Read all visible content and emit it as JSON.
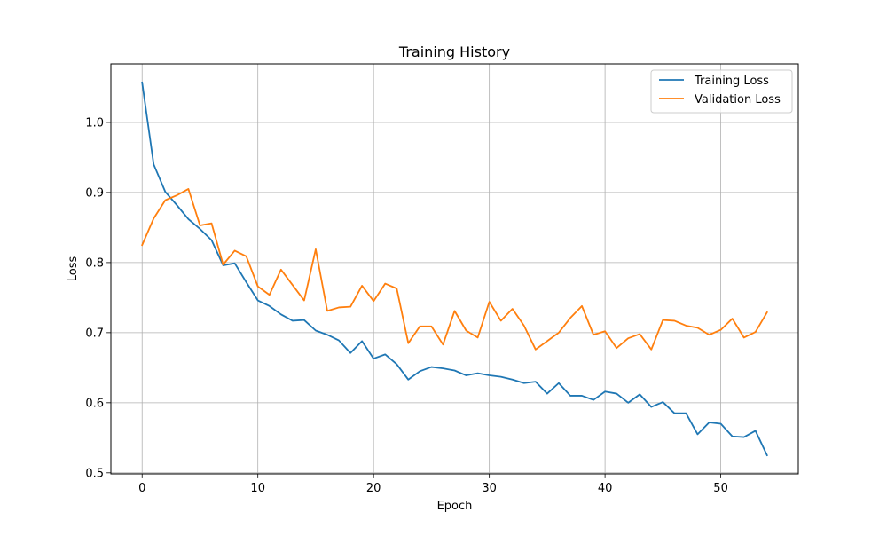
{
  "chart_data": {
    "type": "line",
    "title": "Training History",
    "xlabel": "Epoch",
    "ylabel": "Loss",
    "xlim": [
      -2.7,
      56.7
    ],
    "ylim": [
      0.4985,
      1.0835
    ],
    "xticks": [
      0,
      10,
      20,
      30,
      40,
      50
    ],
    "yticks": [
      0.5,
      0.6,
      0.7,
      0.8,
      0.9,
      1.0
    ],
    "xtick_labels": [
      "0",
      "10",
      "20",
      "30",
      "40",
      "50"
    ],
    "ytick_labels": [
      "0.5",
      "0.6",
      "0.7",
      "0.8",
      "0.9",
      "1.0"
    ],
    "grid": true,
    "legend_position": "top-right",
    "x": [
      0,
      1,
      2,
      3,
      4,
      5,
      6,
      7,
      8,
      9,
      10,
      11,
      12,
      13,
      14,
      15,
      16,
      17,
      18,
      19,
      20,
      21,
      22,
      23,
      24,
      25,
      26,
      27,
      28,
      29,
      30,
      31,
      32,
      33,
      34,
      35,
      36,
      37,
      38,
      39,
      40,
      41,
      42,
      43,
      44,
      45,
      46,
      47,
      48,
      49,
      50,
      51,
      52,
      53,
      54
    ],
    "series": [
      {
        "name": "Training Loss",
        "color": "#1f77b4",
        "values": [
          1.057,
          0.94,
          0.901,
          0.882,
          0.862,
          0.848,
          0.832,
          0.796,
          0.799,
          0.772,
          0.746,
          0.738,
          0.726,
          0.717,
          0.718,
          0.703,
          0.697,
          0.689,
          0.671,
          0.688,
          0.663,
          0.669,
          0.655,
          0.633,
          0.645,
          0.651,
          0.649,
          0.646,
          0.639,
          0.642,
          0.639,
          0.637,
          0.633,
          0.628,
          0.63,
          0.613,
          0.628,
          0.61,
          0.61,
          0.604,
          0.616,
          0.613,
          0.6,
          0.612,
          0.594,
          0.601,
          0.585,
          0.585,
          0.555,
          0.572,
          0.57,
          0.552,
          0.551,
          0.56,
          0.525
        ]
      },
      {
        "name": "Validation Loss",
        "color": "#ff7f0e",
        "values": [
          0.825,
          0.863,
          0.889,
          0.896,
          0.905,
          0.853,
          0.856,
          0.797,
          0.817,
          0.809,
          0.766,
          0.754,
          0.79,
          0.768,
          0.746,
          0.819,
          0.731,
          0.736,
          0.737,
          0.767,
          0.745,
          0.77,
          0.763,
          0.685,
          0.709,
          0.709,
          0.683,
          0.731,
          0.703,
          0.693,
          0.744,
          0.717,
          0.734,
          0.71,
          0.676,
          0.688,
          0.7,
          0.721,
          0.738,
          0.697,
          0.702,
          0.678,
          0.692,
          0.698,
          0.676,
          0.718,
          0.717,
          0.71,
          0.707,
          0.697,
          0.704,
          0.72,
          0.693,
          0.701,
          0.729
        ]
      }
    ]
  }
}
